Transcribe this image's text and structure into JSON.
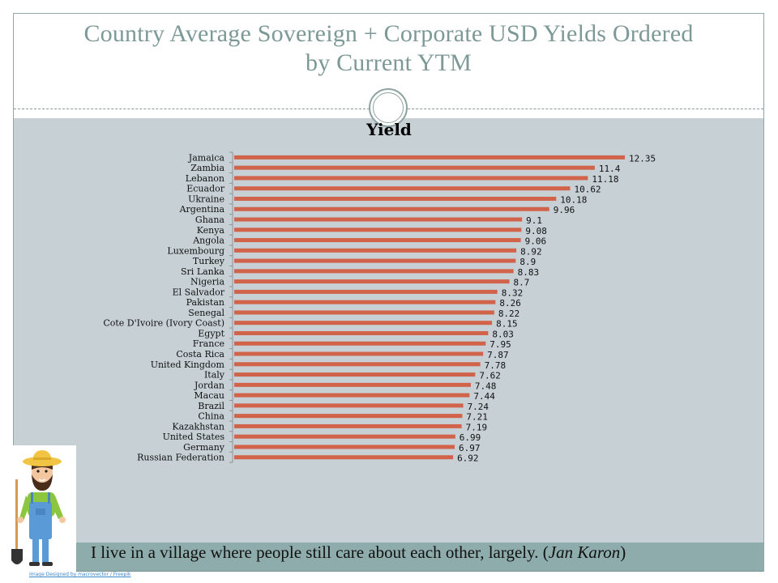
{
  "slide": {
    "title_line1": "Country Average Sovereign + Corporate USD Yields Ordered",
    "title_line2": "by Current YTM",
    "quote_text": "I live in a village where people still care about each other, largely. (",
    "quote_author": "Jan Karon",
    "quote_close": ")",
    "image_credit": "Image Designed by macrovector / Freepik",
    "illustration": "farmer-with-shovel"
  },
  "colors": {
    "bar": "#d0634a",
    "band": "#c6d0d5",
    "quote_band": "#8eacab",
    "title": "#7d9997"
  },
  "chart_data": {
    "type": "bar",
    "orientation": "horizontal",
    "title": "Yield",
    "xlabel": "",
    "ylabel": "",
    "xlim": [
      0,
      12.35
    ],
    "grid": false,
    "legend": "none",
    "data_labels": true,
    "categories": [
      "Jamaica",
      "Zambia",
      "Lebanon",
      "Ecuador",
      "Ukraine",
      "Argentina",
      "Ghana",
      "Kenya",
      "Angola",
      "Luxembourg",
      "Turkey",
      "Sri Lanka",
      "Nigeria",
      "El Salvador",
      "Pakistan",
      "Senegal",
      "Cote D'Ivoire (Ivory Coast)",
      "Egypt",
      "France",
      "Costa Rica",
      "United Kingdom",
      "Italy",
      "Jordan",
      "Macau",
      "Brazil",
      "China",
      "Kazakhstan",
      "United States",
      "Germany",
      "Russian Federation"
    ],
    "series": [
      {
        "name": "Yield",
        "values": [
          12.35,
          11.4,
          11.18,
          10.62,
          10.18,
          9.96,
          9.1,
          9.08,
          9.06,
          8.92,
          8.9,
          8.83,
          8.7,
          8.32,
          8.26,
          8.22,
          8.15,
          8.03,
          7.95,
          7.87,
          7.78,
          7.62,
          7.48,
          7.44,
          7.24,
          7.21,
          7.19,
          6.99,
          6.97,
          6.92
        ],
        "labels": [
          "12.35",
          "11.4",
          "11.18",
          "10.62",
          "10.18",
          "9.96",
          "9.1",
          "9.08",
          "9.06",
          "8.92",
          "8.9",
          "8.83",
          "8.7",
          "8.32",
          "8.26",
          "8.22",
          "8.15",
          "8.03",
          "7.95",
          "7.87",
          "7.78",
          "7.62",
          "7.48",
          "7.44",
          "7.24",
          "7.21",
          "7.19",
          "6.99",
          "6.97",
          "6.92"
        ]
      }
    ]
  }
}
